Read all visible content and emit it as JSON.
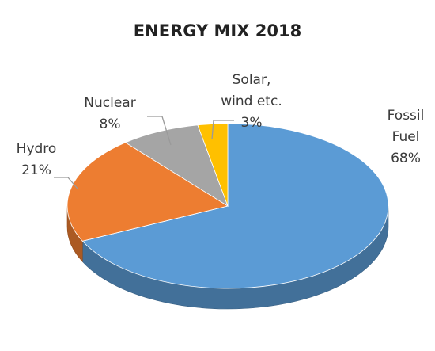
{
  "chart_data": {
    "type": "pie",
    "title": "ENERGY MIX 2018",
    "slices": [
      {
        "name": "Fossil Fuel",
        "label_lines": [
          "Fossil",
          "Fuel",
          "68%"
        ],
        "value": 68,
        "color": "#5b9bd5"
      },
      {
        "name": "Hydro",
        "label_lines": [
          "Hydro",
          "21%"
        ],
        "value": 21,
        "color": "#ed7d31"
      },
      {
        "name": "Nuclear",
        "label_lines": [
          "Nuclear",
          "8%"
        ],
        "value": 8,
        "color": "#a5a5a5"
      },
      {
        "name": "Solar, wind etc.",
        "label_lines": [
          "Solar,",
          "wind etc.",
          "3%"
        ],
        "value": 3,
        "color": "#ffc000"
      }
    ]
  }
}
